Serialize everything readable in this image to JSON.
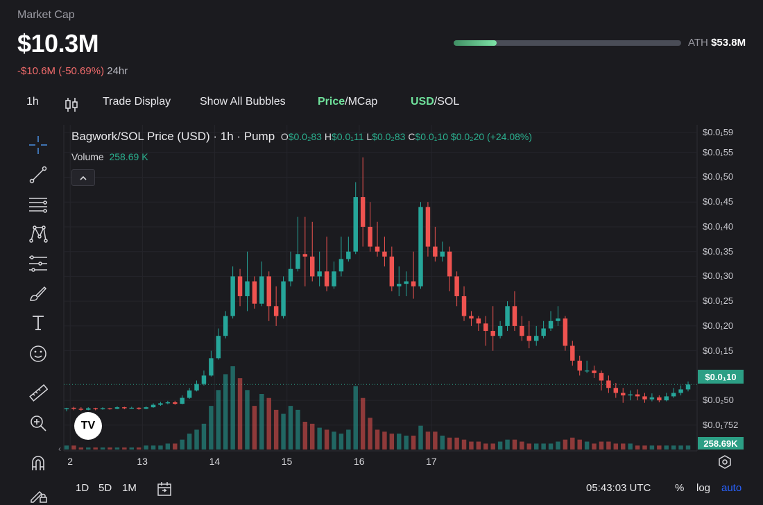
{
  "header": {
    "label": "Market Cap",
    "value": "$10.3M",
    "change_abs": "-$10.6M",
    "change_pct": "(-50.69%)",
    "period": "24hr",
    "ath_label": "ATH",
    "ath_value": "$53.8M",
    "ath_progress": 0.19
  },
  "toolbar": {
    "interval": "1h",
    "trade_display": "Trade Display",
    "show_bubbles": "Show All Bubbles",
    "price_label": "Price",
    "mcap_label": "/MCap",
    "usd_label": "USD",
    "sol_label": "/SOL"
  },
  "legend": {
    "title": "Bagwork/SOL Price (USD) · 1h · Pump",
    "o_key": "O",
    "o_val": "$0.0₂83",
    "h_key": "H",
    "h_val": "$0.0₁11",
    "l_key": "L",
    "l_val": "$0.0₂83",
    "c_key": "C",
    "c_val": "$0.0₁10",
    "change": "$0.0₂20 (+24.08%)",
    "volume_label": "Volume",
    "volume_value": "258.69 K"
  },
  "price_axis": [
    {
      "label": "$0.0₁59",
      "v": 159
    },
    {
      "label": "$0.0₁55",
      "v": 155
    },
    {
      "label": "$0.0₁50",
      "v": 150
    },
    {
      "label": "$0.0₁45",
      "v": 145
    },
    {
      "label": "$0.0₁40",
      "v": 140
    },
    {
      "label": "$0.0₁35",
      "v": 135
    },
    {
      "label": "$0.0₁30",
      "v": 130
    },
    {
      "label": "$0.0₁25",
      "v": 125
    },
    {
      "label": "$0.0₁20",
      "v": 120
    },
    {
      "label": "$0.0₁15",
      "v": 115
    },
    {
      "label": "$0.0₂50",
      "v": 105
    },
    {
      "label": "$0.0₁752",
      "v": 100
    }
  ],
  "current_price": "$0.0₁10",
  "current_volume": "258.69K",
  "x_axis": [
    {
      "label": "2",
      "x": 0.5
    },
    {
      "label": "13",
      "x": 10.5
    },
    {
      "label": "14",
      "x": 20.5
    },
    {
      "label": "15",
      "x": 30.5
    },
    {
      "label": "16",
      "x": 40.5
    },
    {
      "label": "17",
      "x": 50.5
    }
  ],
  "bottom": {
    "d1": "1D",
    "d5": "5D",
    "m1": "1M",
    "time": "05:43:03 UTC",
    "pct": "%",
    "log": "log",
    "auto": "auto"
  },
  "colors": {
    "up": "#26a69a",
    "down": "#ef5350",
    "accent": "#6fe19b",
    "auto": "#2962ff"
  },
  "chart_data": {
    "type": "candlestick",
    "title": "Bagwork/SOL Price (USD) · 1h · Pump",
    "note": "hourly candles, values in hundred-thousandths of a dollar (price axis units)",
    "ylim": [
      99,
      160
    ],
    "candles": [
      [
        0,
        103.2,
        103.4,
        102.8,
        103.5,
        2
      ],
      [
        1,
        103.5,
        103.3,
        103.0,
        103.7,
        2
      ],
      [
        2,
        103.3,
        103.1,
        102.9,
        103.6,
        1
      ],
      [
        3,
        103.1,
        103.4,
        103.0,
        103.6,
        1
      ],
      [
        4,
        103.4,
        103.2,
        103.0,
        103.5,
        1
      ],
      [
        5,
        103.2,
        103.4,
        103.1,
        103.6,
        1
      ],
      [
        6,
        103.4,
        103.3,
        103.1,
        103.5,
        1
      ],
      [
        7,
        103.3,
        103.6,
        103.2,
        103.8,
        1
      ],
      [
        8,
        103.6,
        103.4,
        103.2,
        103.7,
        1
      ],
      [
        9,
        103.4,
        103.5,
        103.3,
        103.7,
        1
      ],
      [
        10,
        103.5,
        103.3,
        103.1,
        103.6,
        1
      ],
      [
        11,
        103.3,
        103.6,
        103.2,
        103.8,
        2
      ],
      [
        12,
        103.6,
        104.1,
        103.5,
        104.4,
        2
      ],
      [
        13,
        104.1,
        104.4,
        103.9,
        104.7,
        2
      ],
      [
        14,
        104.4,
        104.6,
        104.2,
        104.9,
        3
      ],
      [
        15,
        104.6,
        104.3,
        104.1,
        104.9,
        3
      ],
      [
        16,
        104.3,
        105.5,
        104.2,
        106.0,
        5
      ],
      [
        17,
        105.5,
        107.0,
        105.3,
        107.5,
        8
      ],
      [
        18,
        107.0,
        108.3,
        106.8,
        109.0,
        10
      ],
      [
        19,
        108.3,
        110.0,
        108.0,
        111.0,
        13
      ],
      [
        20,
        110.0,
        113.5,
        109.8,
        115.0,
        22
      ],
      [
        21,
        113.5,
        118.0,
        113.2,
        119.5,
        30
      ],
      [
        22,
        118.0,
        122.0,
        117.5,
        123.0,
        38
      ],
      [
        23,
        122.0,
        130.0,
        121.5,
        132.0,
        42
      ],
      [
        24,
        130.0,
        126.0,
        124.0,
        131.5,
        36
      ],
      [
        25,
        126.0,
        129.0,
        123.0,
        135.0,
        30
      ],
      [
        26,
        129.0,
        124.5,
        123.5,
        130.0,
        22
      ],
      [
        27,
        124.5,
        130.0,
        124.0,
        133.0,
        28
      ],
      [
        28,
        130.0,
        124.0,
        121.0,
        131.0,
        26
      ],
      [
        29,
        124.0,
        122.0,
        120.0,
        128.0,
        20
      ],
      [
        30,
        122.0,
        129.0,
        121.5,
        130.0,
        18
      ],
      [
        31,
        129.0,
        131.5,
        128.0,
        135.0,
        22
      ],
      [
        32,
        131.5,
        134.5,
        131.0,
        142.0,
        20
      ],
      [
        33,
        134.5,
        134.0,
        128.0,
        142.0,
        14
      ],
      [
        34,
        134.0,
        130.0,
        129.0,
        141.0,
        13
      ],
      [
        35,
        130.0,
        131.0,
        128.0,
        135.0,
        11
      ],
      [
        36,
        131.0,
        128.0,
        127.0,
        138.0,
        10
      ],
      [
        37,
        128.0,
        131.0,
        127.5,
        133.0,
        9
      ],
      [
        38,
        131.0,
        133.5,
        130.0,
        138.0,
        8
      ],
      [
        39,
        133.5,
        135.0,
        133.0,
        138.0,
        10
      ],
      [
        40,
        135.0,
        146.0,
        134.5,
        149.0,
        32
      ],
      [
        41,
        146.0,
        140.0,
        136.0,
        154.0,
        26
      ],
      [
        42,
        140.0,
        136.0,
        135.0,
        145.0,
        16
      ],
      [
        43,
        136.0,
        135.0,
        134.0,
        141.0,
        10
      ],
      [
        44,
        135.0,
        134.0,
        132.0,
        138.0,
        9
      ],
      [
        45,
        134.0,
        128.0,
        127.0,
        136.0,
        8
      ],
      [
        46,
        128.0,
        128.5,
        126.0,
        132.0,
        8
      ],
      [
        47,
        128.5,
        129.0,
        126.0,
        131.0,
        7
      ],
      [
        48,
        129.0,
        128.0,
        125.5,
        135.0,
        7
      ],
      [
        49,
        128.0,
        144.0,
        127.5,
        145.0,
        12
      ],
      [
        50,
        144.0,
        136.0,
        134.0,
        145.0,
        9
      ],
      [
        51,
        136.0,
        134.0,
        133.0,
        140.0,
        9
      ],
      [
        52,
        134.0,
        135.0,
        133.0,
        137.0,
        7
      ],
      [
        53,
        135.0,
        130.0,
        127.0,
        136.0,
        6
      ],
      [
        54,
        130.0,
        126.0,
        124.0,
        131.0,
        6
      ],
      [
        55,
        126.0,
        122.0,
        121.0,
        128.0,
        5
      ],
      [
        56,
        122.0,
        121.5,
        120.0,
        123.0,
        4
      ],
      [
        57,
        121.5,
        120.5,
        119.0,
        122.0,
        4
      ],
      [
        58,
        120.5,
        119.0,
        116.0,
        122.0,
        3
      ],
      [
        59,
        119.0,
        118.0,
        115.0,
        124.0,
        3
      ],
      [
        60,
        118.0,
        120.0,
        117.5,
        121.0,
        4
      ],
      [
        61,
        120.0,
        124.0,
        119.0,
        125.0,
        5
      ],
      [
        62,
        124.0,
        120.0,
        119.0,
        127.0,
        5
      ],
      [
        63,
        120.0,
        118.0,
        117.0,
        122.0,
        4
      ],
      [
        64,
        118.0,
        117.0,
        115.5,
        121.0,
        3
      ],
      [
        65,
        117.0,
        118.0,
        116.0,
        120.0,
        3
      ],
      [
        66,
        118.0,
        119.5,
        117.5,
        121.0,
        3
      ],
      [
        67,
        119.5,
        121.0,
        119.0,
        123.0,
        3
      ],
      [
        68,
        121.0,
        121.5,
        120.0,
        124.0,
        4
      ],
      [
        69,
        121.5,
        116.0,
        115.0,
        122.0,
        5
      ],
      [
        70,
        116.0,
        113.0,
        112.0,
        117.0,
        6
      ],
      [
        71,
        113.0,
        111.0,
        110.0,
        114.0,
        5
      ],
      [
        72,
        111.0,
        111.0,
        110.5,
        113.0,
        4
      ],
      [
        73,
        111.0,
        110.5,
        109.5,
        112.0,
        3
      ],
      [
        74,
        110.5,
        109.0,
        107.0,
        111.0,
        4
      ],
      [
        75,
        109.0,
        107.5,
        106.5,
        110.0,
        4
      ],
      [
        76,
        107.5,
        106.5,
        105.5,
        108.5,
        3
      ],
      [
        77,
        106.5,
        106.0,
        104.5,
        107.5,
        3
      ],
      [
        78,
        106.0,
        106.2,
        105.0,
        107.0,
        3
      ],
      [
        79,
        106.2,
        105.8,
        105.0,
        107.2,
        2
      ],
      [
        80,
        105.8,
        105.2,
        104.5,
        106.5,
        2
      ],
      [
        81,
        105.2,
        105.6,
        104.8,
        106.4,
        2
      ],
      [
        82,
        105.6,
        105.0,
        104.6,
        106.0,
        2
      ],
      [
        83,
        105.0,
        105.8,
        104.8,
        106.5,
        2
      ],
      [
        84,
        105.8,
        106.5,
        105.5,
        107.5,
        2
      ],
      [
        85,
        106.5,
        107.2,
        106.0,
        108.0,
        2
      ],
      [
        86,
        107.2,
        108.2,
        106.8,
        108.8,
        2
      ]
    ]
  }
}
